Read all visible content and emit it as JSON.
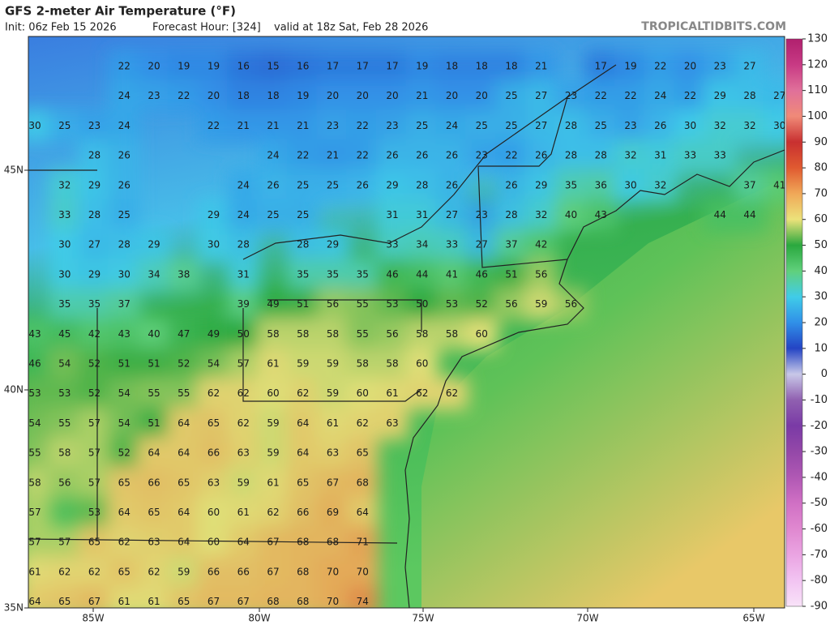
{
  "header": {
    "title": "GFS 2-meter Air Temperature (°F)",
    "init": "Init: 06z Feb 15 2026",
    "forecast_hour": "Forecast Hour: [324]",
    "valid": "valid at 18z Sat, Feb 28 2026",
    "source": "TROPICALTIDBITS.COM"
  },
  "map": {
    "lat_labels": [
      "45N",
      "40N",
      "35N"
    ],
    "lon_labels": [
      "85W",
      "80W",
      "75W",
      "70W",
      "65W"
    ],
    "temperatures": [
      [
        null,
        null,
        null,
        22,
        20,
        19,
        19,
        16,
        15,
        16,
        17,
        17,
        17,
        19,
        18,
        18,
        18,
        21,
        null,
        17,
        19,
        22,
        20,
        23,
        27,
        null
      ],
      [
        null,
        null,
        null,
        24,
        23,
        22,
        20,
        18,
        18,
        19,
        20,
        20,
        20,
        21,
        20,
        20,
        25,
        27,
        23,
        22,
        22,
        24,
        22,
        29,
        28,
        27
      ],
      [
        30,
        25,
        23,
        24,
        null,
        null,
        22,
        21,
        21,
        21,
        23,
        22,
        23,
        25,
        24,
        25,
        25,
        27,
        28,
        25,
        23,
        26,
        30,
        32,
        32,
        30
      ],
      [
        null,
        null,
        28,
        26,
        null,
        null,
        null,
        null,
        24,
        22,
        21,
        22,
        26,
        26,
        26,
        23,
        22,
        26,
        28,
        28,
        32,
        31,
        33,
        33,
        null,
        null
      ],
      [
        null,
        32,
        29,
        26,
        null,
        null,
        null,
        24,
        26,
        25,
        25,
        26,
        29,
        28,
        26,
        null,
        26,
        29,
        35,
        36,
        30,
        32,
        null,
        null,
        37,
        41
      ],
      [
        null,
        33,
        28,
        25,
        null,
        null,
        29,
        24,
        25,
        25,
        null,
        null,
        31,
        31,
        27,
        23,
        28,
        32,
        40,
        43,
        null,
        null,
        null,
        44,
        44,
        null
      ],
      [
        null,
        30,
        27,
        28,
        29,
        null,
        30,
        28,
        null,
        28,
        29,
        null,
        33,
        34,
        33,
        27,
        37,
        42,
        null,
        null,
        null,
        null,
        null,
        null,
        null,
        null
      ],
      [
        null,
        30,
        29,
        30,
        34,
        38,
        null,
        31,
        null,
        35,
        35,
        35,
        46,
        44,
        41,
        46,
        51,
        56,
        null,
        null,
        null,
        null,
        null,
        null,
        null,
        null
      ],
      [
        null,
        35,
        35,
        37,
        null,
        null,
        null,
        39,
        49,
        51,
        56,
        55,
        53,
        50,
        53,
        52,
        56,
        59,
        56,
        null,
        null,
        null,
        null,
        null,
        null,
        null
      ],
      [
        43,
        45,
        42,
        43,
        40,
        47,
        49,
        50,
        58,
        58,
        58,
        55,
        56,
        58,
        58,
        60,
        null,
        null,
        null,
        null,
        null,
        null,
        null,
        null,
        null,
        null
      ],
      [
        46,
        54,
        52,
        51,
        51,
        52,
        54,
        57,
        61,
        59,
        59,
        58,
        58,
        60,
        null,
        null,
        null,
        null,
        null,
        null,
        null,
        null,
        null,
        null,
        null,
        null
      ],
      [
        53,
        53,
        52,
        54,
        55,
        55,
        62,
        62,
        60,
        62,
        59,
        60,
        61,
        62,
        62,
        null,
        null,
        null,
        null,
        null,
        null,
        null,
        null,
        null,
        null,
        null
      ],
      [
        54,
        55,
        57,
        54,
        51,
        64,
        65,
        62,
        59,
        64,
        61,
        62,
        63,
        null,
        null,
        null,
        null,
        null,
        null,
        null,
        null,
        null,
        null,
        null,
        null,
        null
      ],
      [
        55,
        58,
        57,
        52,
        64,
        64,
        66,
        63,
        59,
        64,
        63,
        65,
        null,
        null,
        null,
        null,
        null,
        null,
        null,
        null,
        null,
        null,
        null,
        null,
        null,
        null
      ],
      [
        58,
        56,
        57,
        65,
        66,
        65,
        63,
        59,
        61,
        65,
        67,
        68,
        null,
        null,
        null,
        null,
        null,
        null,
        null,
        null,
        null,
        null,
        null,
        null,
        null,
        null
      ],
      [
        57,
        null,
        53,
        64,
        65,
        64,
        60,
        61,
        62,
        66,
        69,
        64,
        null,
        null,
        null,
        null,
        null,
        null,
        null,
        null,
        null,
        null,
        null,
        null,
        null,
        null
      ],
      [
        57,
        57,
        65,
        62,
        63,
        64,
        60,
        64,
        67,
        68,
        68,
        71,
        null,
        null,
        null,
        null,
        null,
        null,
        null,
        null,
        null,
        null,
        null,
        null,
        null,
        null
      ],
      [
        61,
        62,
        62,
        65,
        62,
        59,
        66,
        66,
        67,
        68,
        70,
        70,
        null,
        null,
        null,
        null,
        null,
        null,
        null,
        null,
        null,
        null,
        null,
        null,
        null,
        null
      ],
      [
        64,
        65,
        67,
        61,
        61,
        65,
        67,
        67,
        68,
        68,
        70,
        74,
        null,
        null,
        null,
        null,
        null,
        null,
        null,
        null,
        null,
        null,
        null,
        null,
        null,
        null
      ]
    ]
  },
  "colorbar": {
    "ticks": [
      130,
      120,
      110,
      100,
      90,
      80,
      70,
      60,
      50,
      40,
      30,
      20,
      10,
      0,
      -10,
      -20,
      -30,
      -40,
      -50,
      -60,
      -70,
      -80,
      -90
    ],
    "colors": [
      "#b0206e",
      "#c83a84",
      "#e0709a",
      "#f08a78",
      "#c83030",
      "#e05a30",
      "#f0a858",
      "#ece27a",
      "#2aa83e",
      "#60d07c",
      "#40cce8",
      "#3090e8",
      "#2444c4",
      "#c8c8e8",
      "#9060b0",
      "#7a3aa6",
      "#9448a8",
      "#b058b4",
      "#d070c4",
      "#e088d0",
      "#eaa4e2",
      "#f2c4f2",
      "#f8e2f8"
    ]
  }
}
